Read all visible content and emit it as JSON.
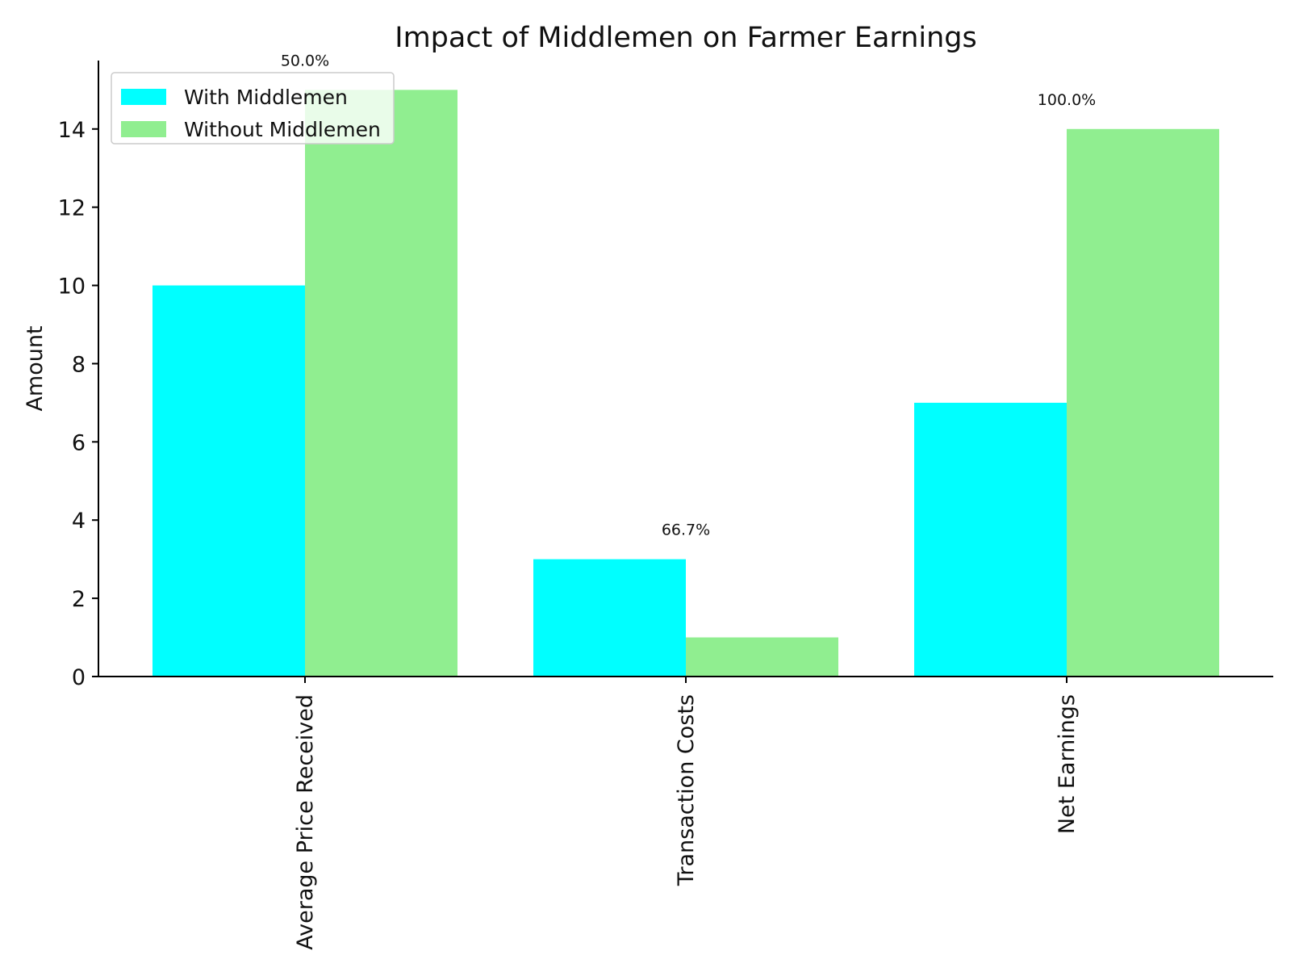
{
  "chart_data": {
    "type": "bar",
    "title": "Impact of Middlemen on Farmer Earnings",
    "xlabel": "",
    "ylabel": "Amount",
    "categories": [
      "Average Price Received",
      "Transaction Costs",
      "Net Earnings"
    ],
    "series": [
      {
        "name": "With Middlemen",
        "values": [
          10,
          3,
          7
        ],
        "color": "#00ffff"
      },
      {
        "name": "Without Middlemen",
        "values": [
          15,
          1,
          14
        ],
        "color": "#90ee90"
      }
    ],
    "bar_labels": [
      "50.0%",
      "66.7%",
      "100.0%"
    ],
    "ylim": [
      0,
      15.75
    ],
    "yticks": [
      "0",
      "2",
      "4",
      "6",
      "8",
      "10",
      "12",
      "14"
    ],
    "legend_position": "top-left",
    "grid": false
  }
}
